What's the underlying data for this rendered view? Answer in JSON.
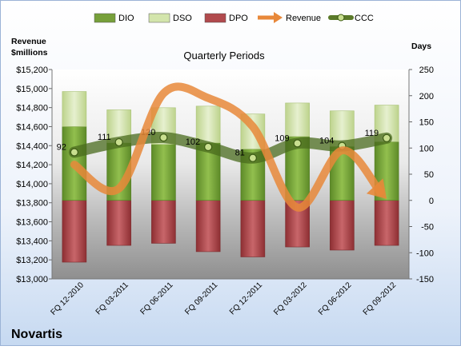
{
  "chart_data": {
    "type": "bar",
    "title": "Quarterly Periods",
    "company": "Novartis",
    "left_axis_title": [
      "Revenue",
      "$millions"
    ],
    "right_axis_title": "Days",
    "left_axis": {
      "min": 13000,
      "max": 15200,
      "step": 200
    },
    "right_axis": {
      "min": -150,
      "max": 250,
      "step": 50
    },
    "categories": [
      "FQ 12-2010",
      "FQ 03-2011",
      "FQ 06-2011",
      "FQ 09-2011",
      "FQ 12-2011",
      "FQ 03-2012",
      "FQ 06-2012",
      "FQ 09-2012"
    ],
    "left_tick_labels": [
      "$13,000",
      "$13,200",
      "$13,400",
      "$13,600",
      "$13,800",
      "$14,000",
      "$14,200",
      "$14,400",
      "$14,600",
      "$14,800",
      "$15,000",
      "$15,200"
    ],
    "right_tick_labels": [
      "-150",
      "-100",
      "-50",
      "0",
      "50",
      "100",
      "150",
      "200",
      "250"
    ],
    "legend": [
      "DIO",
      "DSO",
      "DPO",
      "Revenue",
      "CCC"
    ],
    "series": [
      {
        "name": "DIO",
        "axis": "right",
        "values": [
          141,
          110,
          107,
          110,
          98,
          122,
          103,
          112
        ],
        "color": "#77a03a"
      },
      {
        "name": "DSO",
        "axis": "right",
        "values": [
          67,
          63,
          70,
          70,
          67,
          64,
          68,
          70
        ],
        "color": "#d3e5ac"
      },
      {
        "name": "DPO",
        "axis": "right",
        "values": [
          -118,
          -86,
          -82,
          -98,
          -108,
          -89,
          -95,
          -86
        ],
        "color": "#b14a4d"
      },
      {
        "name": "Revenue",
        "axis": "left",
        "values": [
          14200,
          13950,
          14950,
          14900,
          14600,
          13750,
          14350,
          13840
        ],
        "color": "#e8883a"
      },
      {
        "name": "CCC",
        "axis": "right",
        "values": [
          92,
          111,
          120,
          102,
          81,
          109,
          104,
          119
        ],
        "color": "#5b7a2a"
      }
    ],
    "ccc_labels": [
      "92",
      "111",
      "120",
      "102",
      "81",
      "109",
      "104",
      "119"
    ]
  }
}
